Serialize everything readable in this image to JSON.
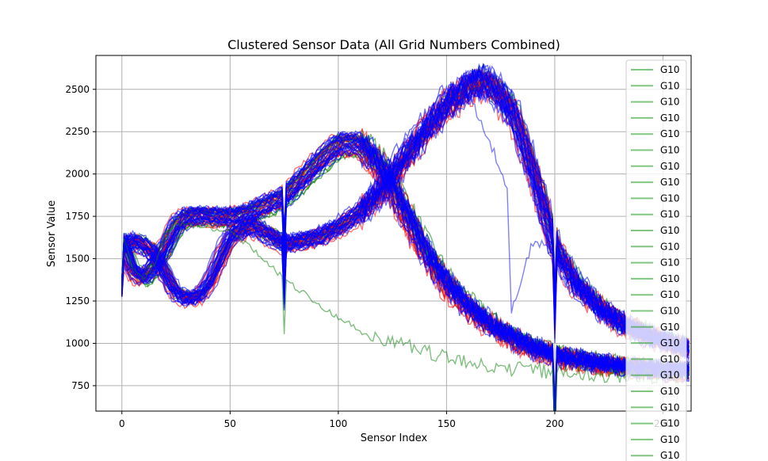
{
  "chart_data": {
    "type": "line",
    "title": "Clustered Sensor Data (All Grid Numbers Combined)",
    "xlabel": "Sensor Index",
    "ylabel": "Sensor Value",
    "xlim": [
      -12,
      263
    ],
    "ylim": [
      600,
      2700
    ],
    "xticks": [
      0,
      50,
      100,
      150,
      200,
      250
    ],
    "yticks": [
      750,
      1000,
      1250,
      1500,
      1750,
      2000,
      2250,
      2500
    ],
    "grid": true,
    "legend": {
      "placement": "top-right",
      "entries": [
        "G10",
        "G10",
        "G10",
        "G10",
        "G10",
        "G10",
        "G10",
        "G10",
        "G10",
        "G10",
        "G10",
        "G10",
        "G10",
        "G10",
        "G10",
        "G10",
        "G10",
        "G10",
        "G10",
        "G10",
        "G10",
        "G10",
        "G10",
        "G10",
        "G10"
      ],
      "color": "#2ca02c"
    },
    "colors": {
      "red_cluster": "#ff0000",
      "green_cluster": "#008000",
      "blue_cluster": "#0000ff"
    },
    "profiles": [
      {
        "id": "a",
        "x": [
          0,
          5,
          10,
          15,
          20,
          25,
          30,
          35,
          40,
          50,
          60,
          75,
          90,
          100,
          110,
          120,
          130,
          140,
          150,
          160,
          170,
          180,
          190,
          200,
          210,
          220,
          230,
          240,
          250,
          263
        ],
        "values": [
          1600,
          1420,
          1380,
          1450,
          1560,
          1690,
          1740,
          1750,
          1745,
          1740,
          1770,
          1860,
          2050,
          2170,
          2170,
          2030,
          1790,
          1540,
          1350,
          1210,
          1110,
          1030,
          970,
          930,
          900,
          880,
          860,
          850,
          840,
          830
        ]
      },
      {
        "id": "b",
        "x": [
          0,
          5,
          10,
          15,
          20,
          25,
          30,
          35,
          40,
          50,
          60,
          75,
          90,
          100,
          110,
          120,
          130,
          140,
          150,
          160,
          165,
          170,
          180,
          190,
          200,
          210,
          220,
          230,
          240,
          250,
          263
        ],
        "values": [
          1570,
          1600,
          1570,
          1520,
          1400,
          1290,
          1260,
          1270,
          1350,
          1630,
          1690,
          1580,
          1620,
          1680,
          1770,
          1900,
          2080,
          2250,
          2400,
          2510,
          2540,
          2520,
          2370,
          2000,
          1560,
          1340,
          1210,
          1120,
          1060,
          1010,
          960
        ]
      },
      {
        "id": "c",
        "x": [
          0,
          5,
          10,
          15,
          20,
          25,
          30,
          35,
          40,
          50,
          60,
          75,
          90,
          100,
          110,
          120,
          130,
          140,
          150,
          160,
          170,
          180,
          190,
          200,
          210,
          220,
          230,
          240,
          250,
          263
        ],
        "values": [
          1650,
          1450,
          1380,
          1460,
          1650,
          1710,
          1700,
          1690,
          1680,
          1660,
          1560,
          1380,
          1240,
          1150,
          1080,
          1030,
          990,
          950,
          920,
          890,
          870,
          850,
          840,
          830,
          820,
          815,
          810,
          805,
          800,
          795
        ]
      },
      {
        "id": "d",
        "x": [
          0,
          5,
          10,
          15,
          20,
          25,
          30,
          35,
          40,
          50,
          60,
          75,
          90,
          100,
          110,
          120,
          130,
          140,
          150,
          160,
          170,
          178,
          180,
          185,
          190,
          200,
          210,
          220,
          230,
          240,
          250,
          263
        ],
        "values": [
          1600,
          1600,
          1570,
          1520,
          1400,
          1290,
          1260,
          1270,
          1350,
          1630,
          1690,
          1580,
          1620,
          1680,
          1770,
          1900,
          2080,
          2250,
          2400,
          2480,
          2200,
          1900,
          1200,
          1400,
          1600,
          1550,
          1340,
          1210,
          1120,
          1060,
          1010,
          960
        ]
      }
    ]
  }
}
